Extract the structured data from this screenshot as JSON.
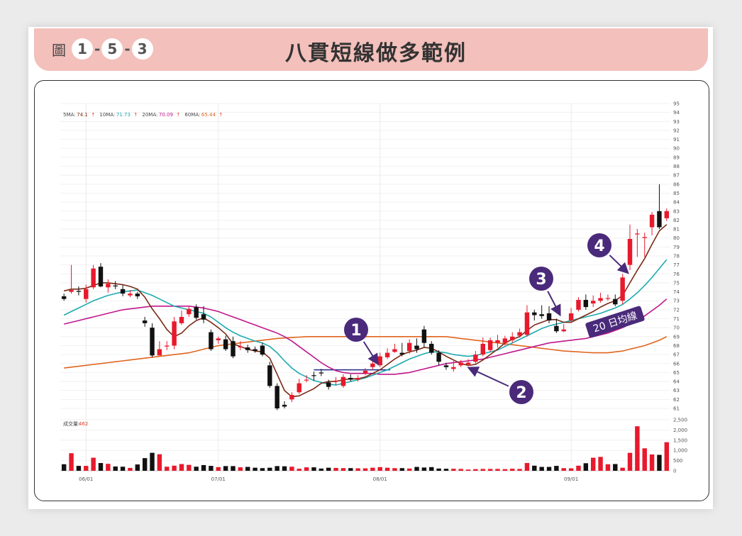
{
  "figure": {
    "prefix": "圖",
    "number_parts": [
      "1",
      "5",
      "3"
    ],
    "title": "八貫短線做多範例"
  },
  "chart_data": {
    "type": "candlestick",
    "ma_legend": [
      {
        "label": "5MA:",
        "value": "74.1",
        "color": "#7a2a16"
      },
      {
        "label": "10MA:",
        "value": "71.73",
        "color": "#1eaab0"
      },
      {
        "label": "20MA:",
        "value": "70.09",
        "color": "#c0168c"
      },
      {
        "label": "60MA:",
        "value": "65.44",
        "color": "#e0641e"
      }
    ],
    "volume_label": "成交量:",
    "volume_value": "462",
    "price_ticks": [
      61,
      62,
      63,
      64,
      65,
      66,
      67,
      68,
      69,
      70,
      71,
      72,
      73,
      74,
      75,
      76,
      77,
      78,
      79,
      80,
      81,
      82,
      83,
      84,
      85,
      86,
      87,
      88,
      89,
      90,
      91,
      92,
      93,
      94,
      95
    ],
    "volume_ticks": [
      "0",
      "500",
      "1,000",
      "1,500",
      "2,000",
      "2,500"
    ],
    "x_ticks": [
      "06/01",
      "07/01",
      "08/01",
      "09/01"
    ],
    "candles": [
      [
        73.5,
        73.2,
        73.8,
        73.0
      ],
      [
        74.0,
        74.2,
        77.0,
        73.8
      ],
      [
        74.1,
        74.0,
        74.6,
        73.6
      ],
      [
        73.2,
        74.3,
        74.8,
        72.8
      ],
      [
        74.5,
        76.6,
        77.0,
        74.3
      ],
      [
        76.8,
        74.6,
        77.2,
        74.5
      ],
      [
        74.5,
        74.9,
        75.4,
        73.9
      ],
      [
        74.7,
        74.6,
        75.2,
        74.3
      ],
      [
        74.3,
        73.8,
        74.8,
        73.5
      ],
      [
        73.6,
        73.8,
        74.2,
        73.4
      ],
      [
        73.8,
        73.5,
        74.0,
        73.2
      ],
      [
        70.8,
        70.5,
        71.2,
        70.1
      ],
      [
        70.0,
        66.9,
        70.5,
        66.7
      ],
      [
        66.9,
        67.6,
        68.5,
        67.0
      ],
      [
        67.9,
        68.0,
        68.5,
        67.5
      ],
      [
        68.0,
        70.7,
        71.2,
        67.6
      ],
      [
        70.5,
        71.2,
        71.9,
        70.3
      ],
      [
        71.5,
        72.1,
        72.4,
        71.2
      ],
      [
        72.3,
        71.1,
        72.6,
        70.9
      ],
      [
        71.5,
        70.9,
        72.4,
        70.5
      ],
      [
        69.5,
        67.6,
        69.8,
        67.4
      ],
      [
        68.6,
        68.8,
        69.0,
        68.2
      ],
      [
        68.7,
        67.6,
        69.1,
        67.4
      ],
      [
        68.5,
        66.8,
        69.0,
        66.6
      ],
      [
        67.8,
        67.9,
        68.5,
        67.5
      ],
      [
        67.8,
        67.5,
        68.1,
        67.2
      ],
      [
        67.6,
        67.4,
        67.9,
        67.2
      ],
      [
        68.0,
        67.0,
        68.3,
        66.8
      ],
      [
        65.8,
        63.5,
        66.2,
        63.3
      ],
      [
        63.5,
        61.0,
        63.8,
        60.8
      ],
      [
        61.4,
        61.2,
        61.8,
        61.0
      ],
      [
        62.0,
        62.5,
        62.8,
        61.7
      ],
      [
        62.8,
        63.8,
        64.3,
        62.6
      ],
      [
        64.2,
        64.2,
        64.7,
        63.9
      ],
      [
        64.7,
        64.6,
        65.1,
        64.1
      ],
      [
        65.0,
        64.9,
        65.4,
        64.6
      ],
      [
        63.9,
        63.4,
        64.2,
        63.1
      ],
      [
        64.0,
        64.1,
        64.5,
        63.6
      ],
      [
        63.5,
        64.5,
        64.8,
        63.3
      ],
      [
        64.4,
        64.2,
        64.8,
        64.0
      ],
      [
        64.2,
        64.4,
        64.7,
        64.0
      ],
      [
        64.9,
        65.2,
        65.5,
        64.7
      ],
      [
        65.6,
        66.0,
        66.6,
        65.3
      ],
      [
        65.8,
        66.8,
        67.2,
        65.6
      ],
      [
        66.7,
        67.2,
        67.7,
        66.5
      ],
      [
        67.3,
        67.6,
        68.2,
        67.2
      ],
      [
        67.2,
        67.0,
        68.3,
        66.8
      ],
      [
        67.4,
        68.3,
        68.7,
        67.1
      ],
      [
        68.0,
        67.6,
        68.8,
        67.2
      ],
      [
        69.8,
        68.3,
        70.2,
        67.8
      ],
      [
        68.2,
        67.2,
        68.5,
        67.0
      ],
      [
        67.2,
        66.2,
        67.5,
        65.8
      ],
      [
        65.8,
        65.6,
        66.1,
        65.3
      ],
      [
        65.4,
        65.6,
        66.3,
        65.1
      ],
      [
        65.8,
        66.1,
        66.4,
        65.6
      ],
      [
        65.9,
        66.1,
        66.5,
        65.7
      ],
      [
        66.2,
        67.0,
        67.4,
        66.0
      ],
      [
        67.0,
        68.2,
        68.9,
        66.8
      ],
      [
        67.5,
        68.6,
        68.9,
        67.3
      ],
      [
        68.3,
        68.6,
        69.2,
        67.8
      ],
      [
        68.3,
        68.8,
        69.1,
        68.0
      ],
      [
        68.6,
        69.0,
        69.5,
        68.3
      ],
      [
        69.1,
        69.5,
        69.9,
        68.9
      ],
      [
        69.2,
        71.7,
        72.5,
        69.0
      ],
      [
        71.7,
        71.4,
        72.0,
        70.8
      ],
      [
        71.5,
        71.3,
        72.5,
        71.0
      ],
      [
        71.6,
        70.8,
        72.4,
        70.5
      ],
      [
        70.2,
        69.6,
        71.0,
        69.4
      ],
      [
        69.6,
        69.8,
        70.4,
        69.5
      ],
      [
        70.8,
        71.6,
        72.2,
        70.5
      ],
      [
        72.0,
        73.1,
        73.4,
        71.8
      ],
      [
        73.1,
        72.3,
        73.7,
        72.0
      ],
      [
        72.7,
        73.0,
        73.6,
        72.3
      ],
      [
        73.0,
        73.3,
        73.9,
        72.8
      ],
      [
        73.3,
        73.3,
        73.7,
        73.0
      ],
      [
        73.2,
        72.6,
        73.7,
        72.4
      ],
      [
        73.0,
        75.6,
        76.0,
        72.6
      ],
      [
        77.0,
        79.9,
        81.5,
        76.4
      ],
      [
        80.5,
        80.5,
        81.0,
        77.9
      ],
      [
        80.0,
        80.1,
        80.6,
        77.9
      ],
      [
        81.2,
        82.6,
        82.9,
        80.3
      ],
      [
        83.0,
        81.2,
        86.0,
        81.0
      ],
      [
        82.2,
        83.0,
        83.3,
        81.9
      ]
    ],
    "ma5": [
      74.1,
      74.3,
      74.3,
      74.4,
      74.7,
      75.0,
      75.0,
      74.9,
      74.8,
      74.6,
      74.3,
      73.4,
      72.1,
      71.0,
      69.8,
      69.0,
      69.4,
      70.2,
      70.8,
      71.1,
      70.6,
      70.0,
      69.3,
      68.2,
      67.9,
      67.6,
      67.4,
      67.3,
      66.6,
      64.8,
      63.0,
      62.3,
      62.4,
      62.8,
      63.2,
      63.8,
      64.0,
      64.0,
      64.2,
      64.3,
      64.3,
      64.5,
      64.9,
      65.3,
      65.9,
      66.5,
      67.0,
      67.3,
      67.5,
      67.8,
      67.7,
      67.3,
      66.8,
      66.4,
      66.0,
      65.8,
      65.9,
      66.4,
      67.0,
      67.6,
      68.3,
      68.7,
      69.0,
      69.7,
      70.3,
      70.6,
      70.9,
      70.9,
      70.6,
      70.6,
      71.0,
      71.4,
      71.8,
      72.3,
      72.7,
      73.0,
      73.6,
      75.0,
      76.4,
      77.7,
      79.3,
      80.8,
      81.5
    ],
    "ma10": [
      71.4,
      71.8,
      72.2,
      72.6,
      73.0,
      73.3,
      73.6,
      73.8,
      74.0,
      74.1,
      74.2,
      73.9,
      73.6,
      73.2,
      72.8,
      72.4,
      72.2,
      72.0,
      71.8,
      71.6,
      71.2,
      70.6,
      70.0,
      69.5,
      69.1,
      68.8,
      68.5,
      68.3,
      67.9,
      67.2,
      66.3,
      65.5,
      64.9,
      64.5,
      64.1,
      63.9,
      63.7,
      63.6,
      63.8,
      64.0,
      64.2,
      64.4,
      64.7,
      65.0,
      65.3,
      65.7,
      66.1,
      66.5,
      66.8,
      67.1,
      67.3,
      67.3,
      67.2,
      67.0,
      66.9,
      66.8,
      66.9,
      67.1,
      67.3,
      67.5,
      67.9,
      68.3,
      68.7,
      69.1,
      69.5,
      69.9,
      70.2,
      70.4,
      70.6,
      70.8,
      71.0,
      71.2,
      71.4,
      71.6,
      71.9,
      72.2,
      72.6,
      73.2,
      73.9,
      74.7,
      75.6,
      76.6,
      77.6
    ],
    "ma20": [
      70.4,
      70.6,
      70.8,
      71.0,
      71.2,
      71.4,
      71.6,
      71.8,
      72.0,
      72.1,
      72.2,
      72.3,
      72.4,
      72.4,
      72.4,
      72.4,
      72.4,
      72.4,
      72.3,
      72.2,
      72.0,
      71.8,
      71.5,
      71.2,
      70.9,
      70.6,
      70.3,
      70.0,
      69.7,
      69.4,
      69.0,
      68.5,
      67.9,
      67.3,
      66.7,
      66.1,
      65.6,
      65.2,
      65.0,
      64.9,
      64.9,
      64.9,
      64.9,
      64.8,
      64.8,
      64.8,
      64.9,
      65.0,
      65.2,
      65.4,
      65.6,
      65.8,
      66.0,
      66.1,
      66.2,
      66.3,
      66.4,
      66.5,
      66.7,
      66.9,
      67.1,
      67.3,
      67.5,
      67.7,
      67.9,
      68.1,
      68.3,
      68.4,
      68.5,
      68.6,
      68.7,
      68.8,
      69.0,
      69.2,
      69.4,
      69.7,
      70.0,
      70.4,
      70.8,
      71.3,
      71.9,
      72.5,
      73.2
    ],
    "ma60": [
      65.5,
      65.6,
      65.7,
      65.8,
      65.9,
      66.0,
      66.1,
      66.2,
      66.3,
      66.4,
      66.5,
      66.6,
      66.7,
      66.8,
      66.9,
      67.0,
      67.1,
      67.2,
      67.4,
      67.6,
      67.8,
      68.0,
      68.1,
      68.2,
      68.3,
      68.4,
      68.5,
      68.6,
      68.7,
      68.8,
      68.85,
      68.9,
      68.95,
      69.0,
      69.0,
      69.0,
      69.0,
      69.0,
      69.0,
      69.0,
      69.0,
      69.0,
      69.0,
      69.0,
      69.0,
      69.0,
      69.0,
      69.0,
      69.0,
      69.0,
      69.0,
      69.0,
      69.0,
      68.9,
      68.8,
      68.7,
      68.6,
      68.5,
      68.4,
      68.3,
      68.2,
      68.1,
      68.0,
      67.9,
      67.8,
      67.7,
      67.6,
      67.5,
      67.4,
      67.35,
      67.3,
      67.25,
      67.2,
      67.2,
      67.2,
      67.3,
      67.4,
      67.6,
      67.8,
      68.0,
      68.3,
      68.6,
      69.0
    ],
    "volume": [
      320,
      860,
      240,
      240,
      640,
      380,
      340,
      210,
      200,
      140,
      310,
      620,
      880,
      810,
      200,
      250,
      330,
      290,
      200,
      280,
      240,
      180,
      230,
      230,
      170,
      190,
      150,
      130,
      150,
      230,
      220,
      200,
      100,
      170,
      170,
      110,
      150,
      140,
      130,
      130,
      120,
      120,
      150,
      180,
      150,
      130,
      130,
      110,
      190,
      160,
      180,
      110,
      100,
      100,
      90,
      60,
      80,
      90,
      90,
      90,
      80,
      100,
      90,
      380,
      250,
      190,
      190,
      240,
      130,
      120,
      250,
      370,
      640,
      680,
      320,
      330,
      150,
      880,
      2180,
      1100,
      800,
      780,
      1400
    ]
  },
  "annotations": {
    "markers": [
      "1",
      "2",
      "3",
      "4"
    ],
    "ma20_label": "20 日均線"
  }
}
